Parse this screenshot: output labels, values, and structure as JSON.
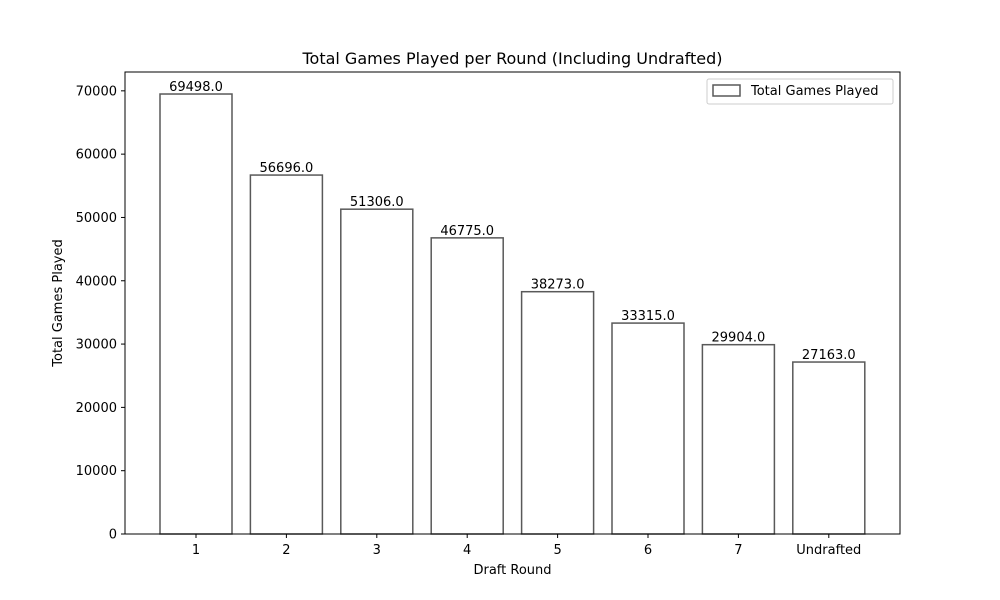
{
  "chart_data": {
    "type": "bar",
    "title": "Total Games Played per Round (Including Undrafted)",
    "xlabel": "Draft Round",
    "ylabel": "Total Games Played",
    "categories": [
      "1",
      "2",
      "3",
      "4",
      "5",
      "6",
      "7",
      "Undrafted"
    ],
    "series": [
      {
        "name": "Total Games Played",
        "values": [
          69498,
          56696,
          51306,
          46775,
          38273,
          33315,
          29904,
          27163
        ],
        "data_labels": [
          "69498.0",
          "56696.0",
          "51306.0",
          "46775.0",
          "38273.0",
          "33315.0",
          "29904.0",
          "27163.0"
        ]
      }
    ],
    "ylim": [
      0,
      72975
    ],
    "yticks": [
      0,
      10000,
      20000,
      30000,
      40000,
      50000,
      60000,
      70000
    ],
    "grid": false,
    "legend": "top-right",
    "colors": {
      "bar_fill": "#ffffff",
      "bar_edge": "#595959",
      "axis": "#000000"
    }
  }
}
